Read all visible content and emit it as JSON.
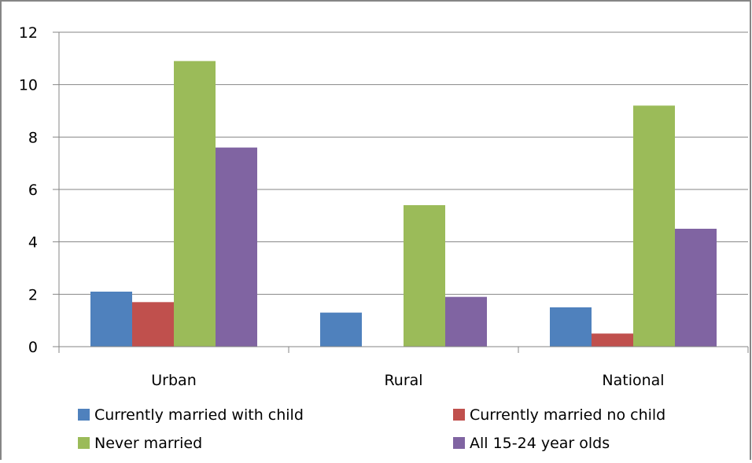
{
  "chart_data": {
    "type": "bar",
    "categories": [
      "Urban",
      "Rural",
      "National"
    ],
    "series": [
      {
        "name": "Currently married with child",
        "values": [
          2.1,
          1.3,
          1.5
        ],
        "color": "#4F81BD"
      },
      {
        "name": "Currently married no child",
        "values": [
          1.7,
          0,
          0.5
        ],
        "color": "#C0504D"
      },
      {
        "name": "Never married",
        "values": [
          10.9,
          5.4,
          9.2
        ],
        "color": "#9BBB59"
      },
      {
        "name": "All 15-24 year olds",
        "values": [
          7.6,
          1.9,
          4.5
        ],
        "color": "#8064A2"
      }
    ],
    "ylim": [
      0,
      12
    ],
    "yticks": [
      "0",
      "2",
      "4",
      "6",
      "8",
      "10",
      "12"
    ],
    "grid": true,
    "legend_position": "bottom"
  }
}
